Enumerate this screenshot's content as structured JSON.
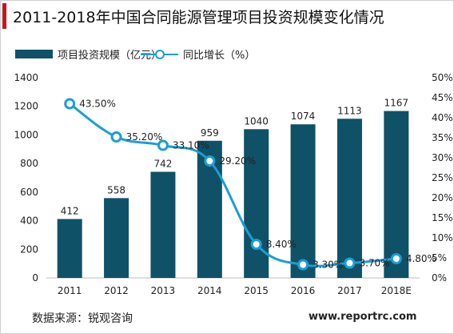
{
  "title": "2011-2018年中国合同能源管理项目投资规模变化情况",
  "source": "数据来源：锐观咨询",
  "website": "www.reportrc.com",
  "colors": {
    "bar": "#0f5167",
    "line": "#1b9ed6",
    "title_accent": "#c0181e"
  },
  "chart_data": {
    "type": "bar",
    "categories": [
      "2011",
      "2012",
      "2013",
      "2014",
      "2015",
      "2016",
      "2017",
      "2018E"
    ],
    "series": [
      {
        "name": "项目投资规模（亿元）",
        "type": "bar",
        "axis": "left",
        "values": [
          412,
          558,
          742,
          959,
          1040,
          1074,
          1113,
          1167
        ],
        "labels": [
          "412",
          "558",
          "742",
          "959",
          "1040",
          "1074",
          "1113",
          "1167"
        ]
      },
      {
        "name": "同比增长（%）",
        "type": "line",
        "axis": "right",
        "values": [
          43.5,
          35.2,
          33.1,
          29.2,
          8.4,
          3.3,
          3.7,
          4.8
        ],
        "labels": [
          "43.50%",
          "35.20%",
          "33.10%",
          "29.20%",
          "8.40%",
          "3.30%",
          "3.70%",
          "4.80%"
        ]
      }
    ],
    "y_left": {
      "range": [
        0,
        1400
      ],
      "ticks": [
        "0",
        "200",
        "400",
        "600",
        "800",
        "1000",
        "1200",
        "1400"
      ]
    },
    "y_right": {
      "range": [
        0,
        50
      ],
      "ticks": [
        "0%",
        "5%",
        "10%",
        "15%",
        "20%",
        "25%",
        "30%",
        "35%",
        "40%",
        "45%",
        "50%"
      ]
    },
    "legend_position": "top-left",
    "grid": false
  }
}
